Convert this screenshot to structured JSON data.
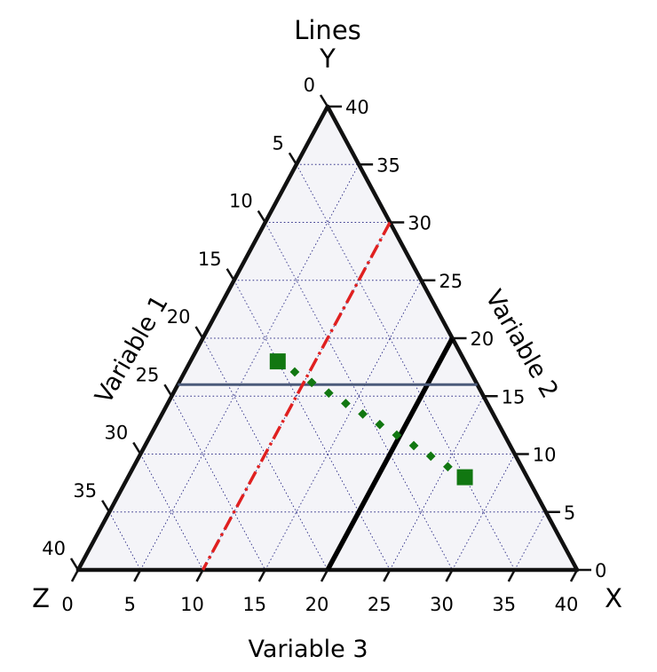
{
  "chart_data": {
    "type": "ternary",
    "title": "Lines",
    "scale": 40,
    "tick_step": 5,
    "gridlines": true,
    "corner_labels": {
      "right": "X",
      "top": "Y",
      "left": "Z"
    },
    "axis_labels": {
      "left": "Variable 1",
      "right": "Variable 2",
      "bottom": "Variable 3"
    },
    "tick_labels": {
      "bottom": [
        "0",
        "5",
        "10",
        "15",
        "20",
        "25",
        "30",
        "35",
        "40"
      ],
      "right": [
        "0",
        "5",
        "10",
        "15",
        "20",
        "25",
        "30",
        "35",
        "40"
      ],
      "left": [
        "0",
        "5",
        "10",
        "15",
        "20",
        "25",
        "30",
        "35",
        "40"
      ]
    },
    "lines": [
      {
        "style": "solid-thick",
        "color": "#000000",
        "p1": [
          20,
          0,
          20
        ],
        "p2": [
          20,
          20,
          0
        ]
      },
      {
        "style": "solid",
        "color": "#4a5a7a",
        "p1": [
          0,
          16,
          24
        ],
        "p2": [
          24,
          16,
          0
        ]
      },
      {
        "style": "dash-dot",
        "color": "#e02020",
        "p1": [
          10,
          30,
          0
        ],
        "p2": [
          10,
          0,
          30
        ]
      },
      {
        "style": "dotted-markers",
        "color": "#117711",
        "p1": [
          7,
          18,
          15
        ],
        "p2": [
          27,
          8,
          5
        ]
      }
    ]
  }
}
